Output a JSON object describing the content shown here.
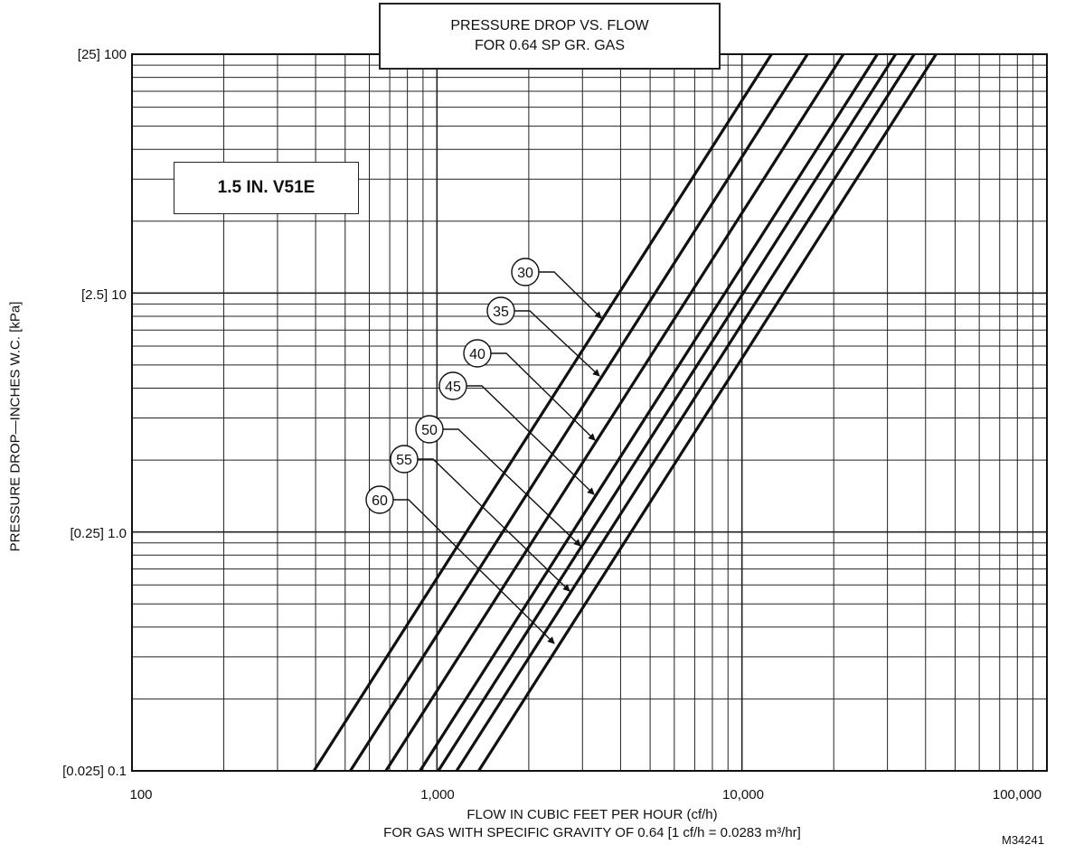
{
  "title": {
    "line1": "PRESSURE DROP VS. FLOW",
    "line2": "FOR 0.64 SP GR. GAS"
  },
  "valve_label": "1.5 IN. V51E",
  "y_axis_title": "PRESSURE DROP—INCHES W.C. [kPa]",
  "x_axis_title_line1": "FLOW IN CUBIC FEET PER HOUR (cf/h)",
  "x_axis_title_line2": "FOR GAS WITH SPECIFIC GRAVITY OF 0.64 [1 cf/h = 0.0283 m³/hr]",
  "figure_code": "M34241",
  "chart_data": {
    "type": "line",
    "x_scale": "log",
    "y_scale": "log",
    "xlim": [
      100,
      100000
    ],
    "ylim": [
      0.1,
      100
    ],
    "grid": true,
    "x_tick_labels": [
      "100",
      "1,000",
      "10,000",
      "100,000"
    ],
    "y_tick_labels": [
      "[0.025] 0.1",
      "[0.25] 1.0",
      "[2.5] 10",
      "[25] 100"
    ],
    "series": [
      {
        "name": "30",
        "x": [
          395,
          12500
        ],
        "y": [
          0.1,
          100
        ]
      },
      {
        "name": "35",
        "x": [
          520,
          16400
        ],
        "y": [
          0.1,
          100
        ]
      },
      {
        "name": "40",
        "x": [
          680,
          21500
        ],
        "y": [
          0.1,
          100
        ]
      },
      {
        "name": "45",
        "x": [
          880,
          27800
        ],
        "y": [
          0.1,
          100
        ]
      },
      {
        "name": "50",
        "x": [
          1010,
          31900
        ],
        "y": [
          0.1,
          100
        ]
      },
      {
        "name": "55",
        "x": [
          1160,
          36700
        ],
        "y": [
          0.1,
          100
        ]
      },
      {
        "name": "60",
        "x": [
          1370,
          43300
        ],
        "y": [
          0.1,
          100
        ]
      }
    ]
  },
  "colors": {
    "line": "#111111",
    "grid": "#222222",
    "background": "#ffffff"
  }
}
